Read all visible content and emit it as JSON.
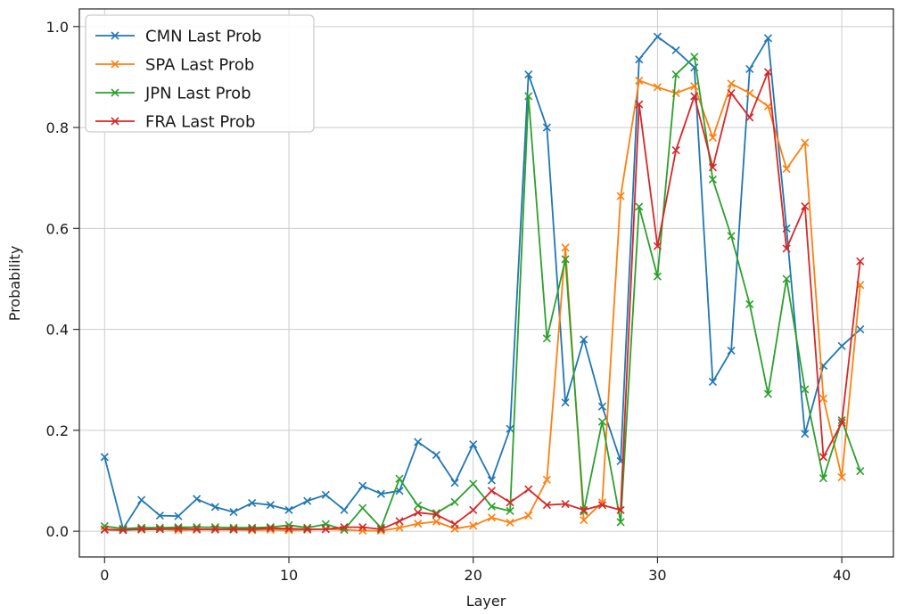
{
  "figure": {
    "background": "#ffffff",
    "grid_color": "#cccccc",
    "spine_color": "#333333",
    "text_color": "#1a1a1a"
  },
  "chart_data": {
    "type": "line",
    "title": "",
    "xlabel": "Layer",
    "ylabel": "Probability",
    "marker": "x",
    "grid": true,
    "legend_position": "upper left",
    "xticks": [
      0,
      10,
      20,
      30,
      40
    ],
    "yticks": [
      0.0,
      0.2,
      0.4,
      0.6,
      0.8,
      1.0
    ],
    "xlim": [
      -1.37,
      42.8
    ],
    "ylim": [
      -0.051,
      1.035
    ],
    "x": [
      0,
      1,
      2,
      3,
      4,
      5,
      6,
      7,
      8,
      9,
      10,
      11,
      12,
      13,
      14,
      15,
      16,
      17,
      18,
      19,
      20,
      21,
      22,
      23,
      24,
      25,
      26,
      27,
      28,
      29,
      30,
      31,
      32,
      33,
      34,
      35,
      36,
      37,
      38,
      39,
      40,
      41
    ],
    "series": [
      {
        "name": "CMN Last Prob",
        "color": "#1f77b4",
        "values": [
          0.147,
          0.005,
          0.062,
          0.031,
          0.03,
          0.064,
          0.048,
          0.038,
          0.056,
          0.052,
          0.042,
          0.06,
          0.072,
          0.042,
          0.09,
          0.074,
          0.08,
          0.177,
          0.151,
          0.096,
          0.172,
          0.101,
          0.203,
          0.905,
          0.8,
          0.255,
          0.38,
          0.247,
          0.139,
          0.935,
          0.98,
          0.953,
          0.919,
          0.296,
          0.358,
          0.916,
          0.977,
          0.6,
          0.193,
          0.328,
          0.367,
          0.4
        ]
      },
      {
        "name": "SPA Last Prob",
        "color": "#ff7f0e",
        "values": [
          0.004,
          0.003,
          0.003,
          0.004,
          0.002,
          0.003,
          0.003,
          0.003,
          0.002,
          0.003,
          0.002,
          0.003,
          0.004,
          0.003,
          0.001,
          0.001,
          0.007,
          0.015,
          0.019,
          0.005,
          0.011,
          0.027,
          0.017,
          0.031,
          0.102,
          0.562,
          0.022,
          0.057,
          0.664,
          0.893,
          0.88,
          0.868,
          0.882,
          0.78,
          0.887,
          0.868,
          0.842,
          0.718,
          0.77,
          0.263,
          0.107,
          0.488
        ]
      },
      {
        "name": "JPN Last Prob",
        "color": "#2ca02c",
        "values": [
          0.01,
          0.005,
          0.007,
          0.007,
          0.008,
          0.008,
          0.008,
          0.007,
          0.007,
          0.008,
          0.012,
          0.007,
          0.014,
          0.003,
          0.046,
          0.007,
          0.104,
          0.051,
          0.036,
          0.058,
          0.094,
          0.049,
          0.04,
          0.862,
          0.382,
          0.539,
          0.039,
          0.217,
          0.018,
          0.643,
          0.505,
          0.905,
          0.94,
          0.697,
          0.585,
          0.45,
          0.272,
          0.5,
          0.281,
          0.105,
          0.22,
          0.119
        ]
      },
      {
        "name": "FRA Last Prob",
        "color": "#d62728",
        "values": [
          0.003,
          0.002,
          0.004,
          0.004,
          0.005,
          0.004,
          0.004,
          0.004,
          0.004,
          0.006,
          0.005,
          0.004,
          0.004,
          0.008,
          0.008,
          0.004,
          0.02,
          0.037,
          0.033,
          0.014,
          0.042,
          0.08,
          0.057,
          0.083,
          0.052,
          0.054,
          0.042,
          0.052,
          0.042,
          0.846,
          0.565,
          0.755,
          0.862,
          0.721,
          0.868,
          0.82,
          0.91,
          0.56,
          0.644,
          0.147,
          0.215,
          0.535
        ]
      }
    ]
  }
}
